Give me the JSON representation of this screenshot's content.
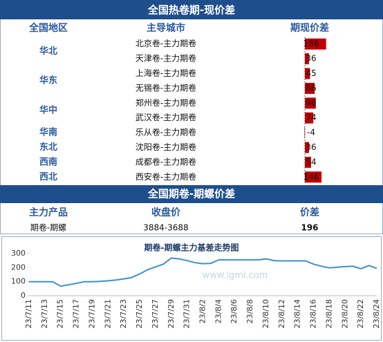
{
  "top_table": {
    "title": "全国热卷期-现价差",
    "columns": [
      "全国地区",
      "主导城市",
      "期现价差"
    ],
    "groups": [
      {
        "region": "华北",
        "rows": [
          {
            "city": "北京卷-主力期卷",
            "value": 186
          },
          {
            "city": "天津卷-主力期卷",
            "value": 36
          }
        ]
      },
      {
        "region": "华东",
        "rows": [
          {
            "city": "上海卷-主力期卷",
            "value": 45
          },
          {
            "city": "无锡卷-主力期卷",
            "value": 86
          }
        ]
      },
      {
        "region": "华中",
        "rows": [
          {
            "city": "郑州卷-主力期卷",
            "value": 96
          },
          {
            "city": "武汉卷-主力期卷",
            "value": 74
          }
        ]
      },
      {
        "region": "华南",
        "rows": [
          {
            "city": "乐从卷-主力期卷",
            "value": -4
          }
        ]
      },
      {
        "region": "东北",
        "rows": [
          {
            "city": "沈阳卷-主力期卷",
            "value": 36
          }
        ]
      },
      {
        "region": "西南",
        "rows": [
          {
            "city": "成都卷-主力期卷",
            "value": 54
          }
        ]
      },
      {
        "region": "西北",
        "rows": [
          {
            "city": "西安卷-主力期卷",
            "value": 146
          }
        ]
      }
    ]
  },
  "spread_table": {
    "title": "全国期卷-期螺价差",
    "columns": [
      "主力产品",
      "收盘价",
      "价差"
    ],
    "rows": [
      [
        "期卷-期螺",
        "3884-3688",
        196
      ]
    ]
  },
  "chart_data": {
    "type": "line",
    "title": "期卷-期螺主力基差走势图",
    "watermark": "www.lgmi.com",
    "categories": [
      "23/7/11",
      null,
      "23/7/13",
      null,
      "23/7/15",
      null,
      "23/7/17",
      null,
      "23/7/19",
      null,
      "23/7/21",
      null,
      "23/7/23",
      null,
      "23/7/25",
      null,
      "23/7/27",
      null,
      "23/7/29",
      null,
      "23/7/31",
      null,
      "23/8/2",
      null,
      "23/8/4",
      null,
      "23/8/6",
      null,
      "23/8/8",
      null,
      "23/8/10",
      null,
      "23/8/12",
      null,
      "23/8/14",
      null,
      "23/8/16",
      null,
      "23/8/18",
      null,
      "23/8/20",
      null,
      "23/8/22",
      null,
      "23/8/24"
    ],
    "values": [
      100,
      100,
      100,
      100,
      68,
      78,
      88,
      100,
      100,
      102,
      106,
      112,
      120,
      130,
      155,
      185,
      205,
      225,
      268,
      262,
      250,
      235,
      228,
      230,
      255,
      255,
      255,
      255,
      255,
      255,
      262,
      250,
      248,
      248,
      248,
      248,
      225,
      210,
      198,
      203,
      207,
      210,
      192,
      215,
      195
    ],
    "color": "#3a8fd6",
    "ylim": [
      0,
      300
    ],
    "yticks": [
      0,
      100,
      200,
      300
    ],
    "grid": false
  }
}
